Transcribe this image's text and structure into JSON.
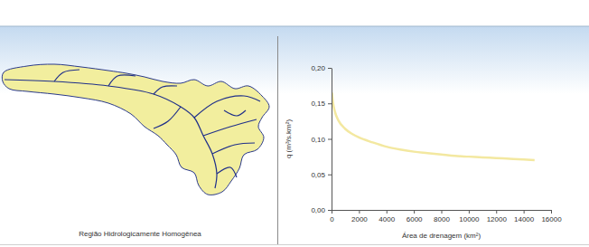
{
  "chart_data": {
    "type": "line",
    "xlabel": "Área de drenagem (km²)",
    "ylabel": "q (m³/s.km²)",
    "x": [
      30,
      100,
      250,
      500,
      1000,
      1500,
      2000,
      3000,
      4000,
      5000,
      6000,
      7000,
      8000,
      9000,
      10000,
      11000,
      12000,
      13000,
      14000,
      14800
    ],
    "values": [
      0.165,
      0.152,
      0.138,
      0.126,
      0.114,
      0.107,
      0.102,
      0.095,
      0.089,
      0.085,
      0.082,
      0.08,
      0.078,
      0.076,
      0.075,
      0.074,
      0.073,
      0.072,
      0.071,
      0.07
    ],
    "color": "#f3e8a0",
    "xlim": [
      0,
      16000
    ],
    "xticks": [
      0,
      2000,
      4000,
      6000,
      8000,
      10000,
      12000,
      14000,
      16000
    ],
    "ylim": [
      0,
      0.2
    ],
    "yticks": [
      {
        "value": 0,
        "label": "0,00"
      },
      {
        "value": 0.05,
        "label": "0,05"
      },
      {
        "value": 0.1,
        "label": "0,10"
      },
      {
        "value": 0.15,
        "label": "0,15"
      },
      {
        "value": 0.2,
        "label": "0,20"
      }
    ],
    "grid": false
  },
  "map": {
    "caption": "Região Hidrologicamente Homogênea"
  }
}
